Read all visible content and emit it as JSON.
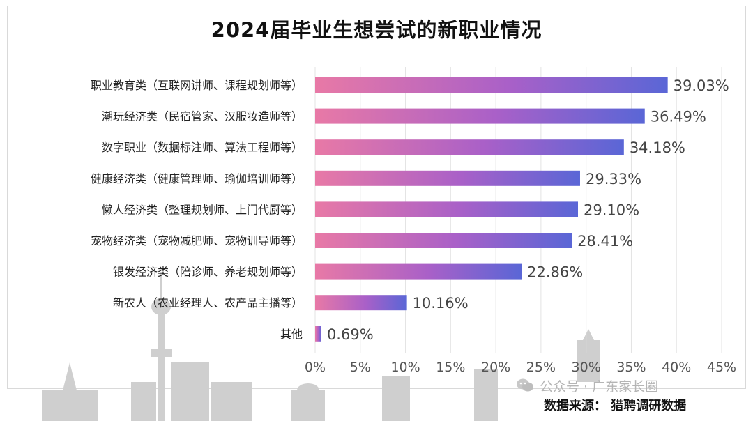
{
  "chart_data": {
    "type": "bar",
    "orientation": "horizontal",
    "title": "2024届毕业生想尝试的新职业情况",
    "categories": [
      "职业教育类（互联网讲师、课程规划师等）",
      "潮玩经济类（民宿管家、汉服妆造师等）",
      "数字职业（数据标注师、算法工程师等）",
      "健康经济类（健康管理师、瑜伽培训师等）",
      "懒人经济类（整理规划师、上门代厨等）",
      "宠物经济类（宠物减肥师、宠物训导师等）",
      "银发经济类（陪诊师、养老规划师等）",
      "新农人（农业经理人、农产品主播等）",
      "其他"
    ],
    "values": [
      39.03,
      36.49,
      34.18,
      29.33,
      29.1,
      28.41,
      22.86,
      10.16,
      0.69
    ],
    "value_labels": [
      "39.03%",
      "36.49%",
      "34.18%",
      "29.33%",
      "29.10%",
      "28.41%",
      "22.86%",
      "10.16%",
      "0.69%"
    ],
    "xlim": [
      0,
      45
    ],
    "xticks": [
      0,
      5,
      10,
      15,
      20,
      25,
      30,
      35,
      40,
      45
    ],
    "xtick_labels": [
      "0%",
      "5%",
      "10%",
      "15%",
      "20%",
      "25%",
      "30%",
      "35%",
      "40%",
      "45%"
    ],
    "grid": "vertical",
    "bar_gradient": [
      "#e879a6",
      "#a960c8",
      "#5a66d6"
    ]
  },
  "footer": {
    "watermark": "公众号 · 广东家长圈",
    "source": "数据来源： 猎聘调研数据"
  },
  "icons": {
    "watermark_icon": "wechat-icon"
  }
}
